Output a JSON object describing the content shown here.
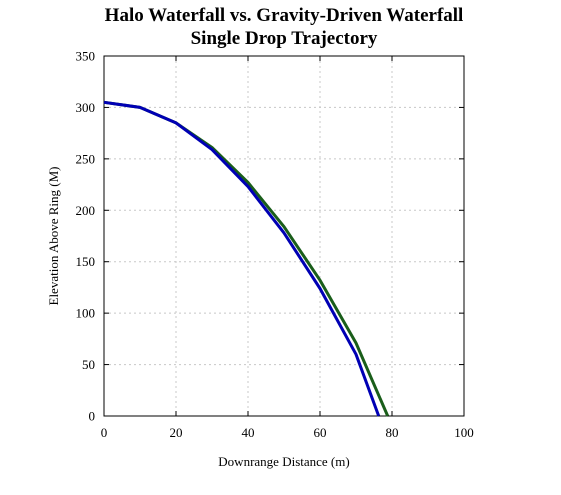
{
  "chart_data": {
    "type": "line",
    "title": "Halo Waterfall vs. Gravity-Driven Waterfall",
    "subtitle": "Single Drop Trajectory",
    "xlabel": "Downrange Distance (m)",
    "ylabel": "Elevation Above Ring (M)",
    "xlim": [
      0,
      100
    ],
    "ylim": [
      0,
      350
    ],
    "xticks": [
      "0",
      "20",
      "40",
      "60",
      "80",
      "100"
    ],
    "yticks": [
      "0",
      "50",
      "100",
      "150",
      "200",
      "250",
      "300",
      "350"
    ],
    "grid": true,
    "legend": "none",
    "series": [
      {
        "color": "#1a5e1a",
        "x": [
          0,
          10,
          20,
          30,
          40,
          50,
          60,
          70,
          78.8
        ],
        "y": [
          305,
          300,
          285,
          261,
          227,
          184,
          132,
          71,
          0
        ]
      },
      {
        "color": "#0000b4",
        "x": [
          0,
          10,
          20,
          30,
          40,
          50,
          60,
          70,
          76.3
        ],
        "y": [
          305,
          300,
          285,
          259,
          223,
          178,
          124,
          60,
          0
        ]
      }
    ]
  }
}
